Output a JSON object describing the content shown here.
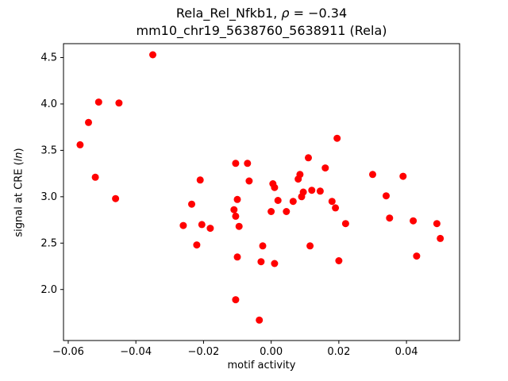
{
  "chart_data": {
    "type": "scatter",
    "title_line1": {
      "prefix": "Rela_Rel_Nfkb1, ",
      "rho": "ρ",
      "suffix": " = −0.34"
    },
    "title_line2": "mm10_chr19_5638760_5638911 (Rela)",
    "xlabel": "motif activity",
    "ylabel": {
      "prefix": "signal at CRE (",
      "italic": "ln",
      "suffix": ")"
    },
    "marker_color": "#ff0000",
    "grid": false,
    "legend": "none",
    "xlim": [
      -0.0614,
      0.0557
    ],
    "ylim": [
      1.45,
      4.65
    ],
    "xtick_values": [
      -0.06,
      -0.04,
      -0.02,
      0.0,
      0.02,
      0.04
    ],
    "xtick_labels": [
      "−0.06",
      "−0.04",
      "−0.02",
      "0.00",
      "0.02",
      "0.04"
    ],
    "ytick_values": [
      2.0,
      2.5,
      3.0,
      3.5,
      4.0,
      4.5
    ],
    "ytick_labels": [
      "2.0",
      "2.5",
      "3.0",
      "3.5",
      "4.0",
      "4.5"
    ],
    "points": [
      [
        -0.0565,
        3.56
      ],
      [
        -0.054,
        3.8
      ],
      [
        -0.051,
        4.02
      ],
      [
        -0.052,
        3.21
      ],
      [
        -0.045,
        4.01
      ],
      [
        -0.046,
        2.98
      ],
      [
        -0.035,
        4.53
      ],
      [
        -0.026,
        2.69
      ],
      [
        -0.0235,
        2.92
      ],
      [
        -0.022,
        2.48
      ],
      [
        -0.021,
        3.18
      ],
      [
        -0.0205,
        2.7
      ],
      [
        -0.018,
        2.66
      ],
      [
        -0.0105,
        3.36
      ],
      [
        -0.011,
        2.86
      ],
      [
        -0.0105,
        2.79
      ],
      [
        -0.01,
        2.97
      ],
      [
        -0.0095,
        2.68
      ],
      [
        -0.01,
        2.35
      ],
      [
        -0.0105,
        1.89
      ],
      [
        -0.007,
        3.36
      ],
      [
        -0.0065,
        3.17
      ],
      [
        -0.003,
        2.3
      ],
      [
        -0.0025,
        2.47
      ],
      [
        -0.0035,
        1.67
      ],
      [
        0.0,
        2.84
      ],
      [
        0.0005,
        3.14
      ],
      [
        0.001,
        3.1
      ],
      [
        0.001,
        2.28
      ],
      [
        0.002,
        2.96
      ],
      [
        0.0045,
        2.84
      ],
      [
        0.0065,
        2.95
      ],
      [
        0.008,
        3.19
      ],
      [
        0.0085,
        3.24
      ],
      [
        0.009,
        3.0
      ],
      [
        0.0095,
        3.05
      ],
      [
        0.011,
        3.42
      ],
      [
        0.012,
        3.07
      ],
      [
        0.0115,
        2.47
      ],
      [
        0.0145,
        3.06
      ],
      [
        0.016,
        3.31
      ],
      [
        0.018,
        2.95
      ],
      [
        0.019,
        2.88
      ],
      [
        0.0195,
        3.63
      ],
      [
        0.02,
        2.31
      ],
      [
        0.022,
        2.71
      ],
      [
        0.03,
        3.24
      ],
      [
        0.034,
        3.01
      ],
      [
        0.035,
        2.77
      ],
      [
        0.039,
        3.22
      ],
      [
        0.042,
        2.74
      ],
      [
        0.043,
        2.36
      ],
      [
        0.049,
        2.71
      ],
      [
        0.05,
        2.55
      ]
    ]
  }
}
